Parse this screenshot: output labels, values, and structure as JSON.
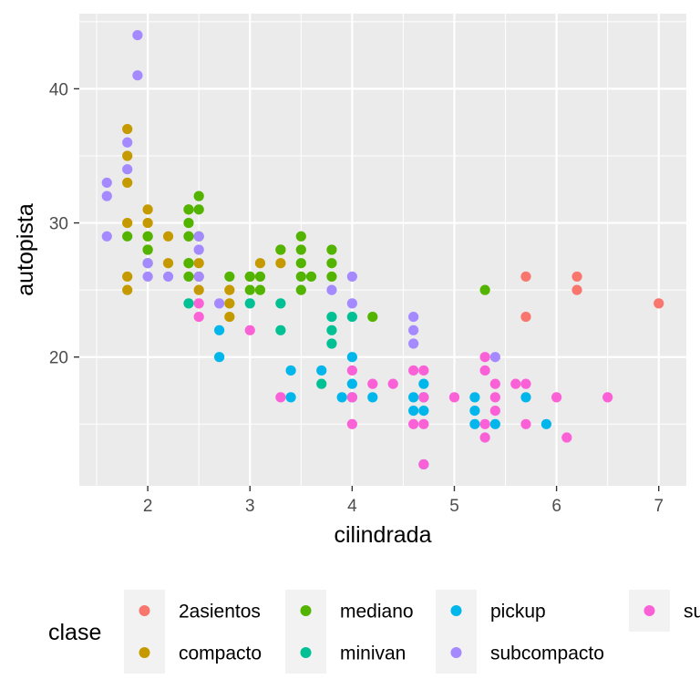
{
  "chart_data": {
    "type": "scatter",
    "xlabel": "cilindrada",
    "ylabel": "autopista",
    "xlim": [
      1.6,
      7.0
    ],
    "ylim": [
      12,
      44
    ],
    "x_ticks": [
      2,
      3,
      4,
      5,
      6,
      7
    ],
    "y_ticks": [
      20,
      30,
      40
    ],
    "grid": true,
    "legend": {
      "title": "clase",
      "position": "bottom",
      "entries": [
        {
          "name": "2asientos",
          "color": "#F8766D"
        },
        {
          "name": "compacto",
          "color": "#C49A00"
        },
        {
          "name": "mediano",
          "color": "#53B400"
        },
        {
          "name": "minivan",
          "color": "#00C094"
        },
        {
          "name": "pickup",
          "color": "#00B6EB"
        },
        {
          "name": "subcompacto",
          "color": "#A58AFF"
        },
        {
          "name": "suv",
          "color": "#FB61D7"
        }
      ]
    },
    "series": [
      {
        "name": "2asientos",
        "color": "#F8766D",
        "points": [
          [
            5.7,
            26
          ],
          [
            5.7,
            23
          ],
          [
            6.2,
            26
          ],
          [
            6.2,
            25
          ],
          [
            7.0,
            24
          ]
        ]
      },
      {
        "name": "compacto",
        "color": "#C49A00",
        "points": [
          [
            1.8,
            37
          ],
          [
            1.8,
            35
          ],
          [
            1.8,
            33
          ],
          [
            1.8,
            30
          ],
          [
            1.8,
            26
          ],
          [
            1.8,
            25
          ],
          [
            2.0,
            31
          ],
          [
            2.0,
            30
          ],
          [
            2.0,
            29
          ],
          [
            2.0,
            28
          ],
          [
            2.2,
            29
          ],
          [
            2.2,
            27
          ],
          [
            2.4,
            31
          ],
          [
            2.4,
            29
          ],
          [
            2.4,
            27
          ],
          [
            2.5,
            27
          ],
          [
            2.5,
            26
          ],
          [
            2.5,
            25
          ],
          [
            2.8,
            25
          ],
          [
            2.8,
            24
          ],
          [
            2.8,
            23
          ],
          [
            3.0,
            26
          ],
          [
            3.1,
            27
          ],
          [
            3.3,
            28
          ],
          [
            3.3,
            27
          ]
        ]
      },
      {
        "name": "mediano",
        "color": "#53B400",
        "points": [
          [
            1.8,
            29
          ],
          [
            2.0,
            29
          ],
          [
            2.0,
            28
          ],
          [
            2.0,
            27
          ],
          [
            2.4,
            31
          ],
          [
            2.4,
            30
          ],
          [
            2.4,
            29
          ],
          [
            2.4,
            27
          ],
          [
            2.4,
            26
          ],
          [
            2.5,
            32
          ],
          [
            2.5,
            31
          ],
          [
            2.5,
            29
          ],
          [
            2.8,
            26
          ],
          [
            3.0,
            26
          ],
          [
            3.0,
            25
          ],
          [
            3.1,
            26
          ],
          [
            3.1,
            25
          ],
          [
            3.3,
            28
          ],
          [
            3.5,
            29
          ],
          [
            3.5,
            28
          ],
          [
            3.5,
            27
          ],
          [
            3.5,
            26
          ],
          [
            3.5,
            25
          ],
          [
            3.6,
            26
          ],
          [
            3.8,
            28
          ],
          [
            3.8,
            27
          ],
          [
            3.8,
            26
          ],
          [
            4.2,
            23
          ],
          [
            5.3,
            25
          ]
        ]
      },
      {
        "name": "minivan",
        "color": "#00C094",
        "points": [
          [
            2.4,
            24
          ],
          [
            3.0,
            24
          ],
          [
            3.3,
            24
          ],
          [
            3.3,
            22
          ],
          [
            3.7,
            18
          ],
          [
            3.8,
            23
          ],
          [
            3.8,
            22
          ],
          [
            3.8,
            21
          ],
          [
            4.0,
            23
          ]
        ]
      },
      {
        "name": "pickup",
        "color": "#00B6EB",
        "points": [
          [
            2.7,
            22
          ],
          [
            2.7,
            20
          ],
          [
            3.4,
            19
          ],
          [
            3.4,
            17
          ],
          [
            3.7,
            19
          ],
          [
            3.9,
            17
          ],
          [
            4.0,
            20
          ],
          [
            4.0,
            18
          ],
          [
            4.0,
            17
          ],
          [
            4.2,
            17
          ],
          [
            4.6,
            17
          ],
          [
            4.6,
            16
          ],
          [
            4.7,
            18
          ],
          [
            4.7,
            17
          ],
          [
            4.7,
            16
          ],
          [
            4.7,
            12
          ],
          [
            5.2,
            17
          ],
          [
            5.2,
            16
          ],
          [
            5.2,
            15
          ],
          [
            5.4,
            15
          ],
          [
            5.7,
            17
          ],
          [
            5.9,
            15
          ]
        ]
      },
      {
        "name": "subcompacto",
        "color": "#A58AFF",
        "points": [
          [
            1.6,
            33
          ],
          [
            1.6,
            32
          ],
          [
            1.6,
            29
          ],
          [
            1.8,
            36
          ],
          [
            1.8,
            34
          ],
          [
            1.9,
            44
          ],
          [
            1.9,
            41
          ],
          [
            2.0,
            27
          ],
          [
            2.0,
            26
          ],
          [
            2.2,
            26
          ],
          [
            2.5,
            29
          ],
          [
            2.5,
            28
          ],
          [
            2.5,
            26
          ],
          [
            2.7,
            24
          ],
          [
            3.8,
            25
          ],
          [
            4.0,
            26
          ],
          [
            4.0,
            24
          ],
          [
            4.6,
            23
          ],
          [
            4.6,
            22
          ],
          [
            4.6,
            21
          ],
          [
            5.4,
            20
          ]
        ]
      },
      {
        "name": "suv",
        "color": "#FB61D7",
        "points": [
          [
            2.5,
            24
          ],
          [
            2.5,
            23
          ],
          [
            3.0,
            22
          ],
          [
            3.3,
            17
          ],
          [
            4.0,
            19
          ],
          [
            4.0,
            17
          ],
          [
            4.0,
            15
          ],
          [
            4.2,
            18
          ],
          [
            4.4,
            18
          ],
          [
            4.6,
            19
          ],
          [
            4.6,
            15
          ],
          [
            4.7,
            19
          ],
          [
            4.7,
            17
          ],
          [
            4.7,
            15
          ],
          [
            4.7,
            12
          ],
          [
            5.0,
            17
          ],
          [
            5.3,
            20
          ],
          [
            5.3,
            19
          ],
          [
            5.3,
            15
          ],
          [
            5.3,
            14
          ],
          [
            5.4,
            18
          ],
          [
            5.4,
            17
          ],
          [
            5.4,
            16
          ],
          [
            5.6,
            18
          ],
          [
            5.7,
            18
          ],
          [
            5.7,
            15
          ],
          [
            6.0,
            17
          ],
          [
            6.1,
            14
          ],
          [
            6.5,
            17
          ]
        ]
      }
    ]
  }
}
